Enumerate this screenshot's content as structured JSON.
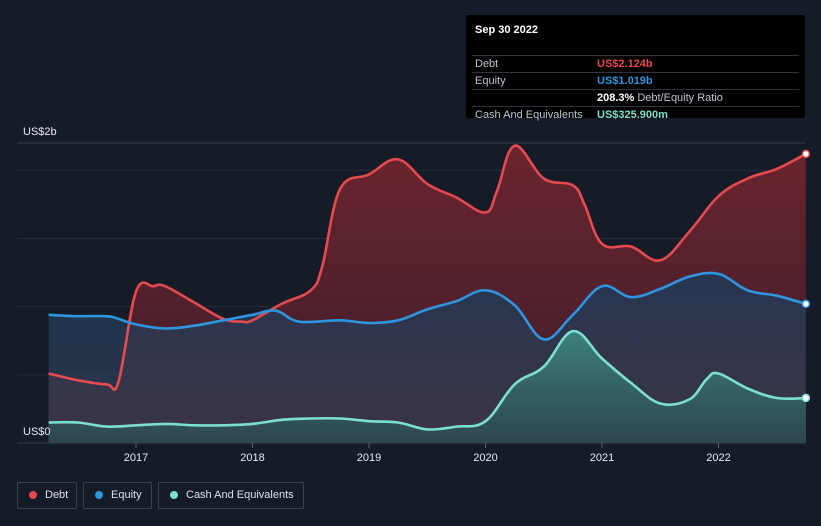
{
  "chart_data": {
    "type": "area",
    "y_axis_labels": {
      "top": "US$2b",
      "bottom": "US$0"
    },
    "ylim": [
      0,
      2.2
    ],
    "xlim": [
      2016.2,
      2022.75
    ],
    "x_ticks": [
      "2017",
      "2018",
      "2019",
      "2020",
      "2021",
      "2022"
    ],
    "x_tick_values": [
      2017,
      2018,
      2019,
      2020,
      2021,
      2022
    ],
    "series": [
      {
        "name": "Debt",
        "color": "#e64a4f",
        "x": [
          2016.25,
          2016.5,
          2016.75,
          2016.85,
          2017.0,
          2017.15,
          2017.25,
          2017.5,
          2017.75,
          2017.9,
          2018.0,
          2018.25,
          2018.5,
          2018.6,
          2018.75,
          2019.0,
          2019.25,
          2019.5,
          2019.75,
          2020.0,
          2020.1,
          2020.25,
          2020.5,
          2020.75,
          2020.85,
          2021.0,
          2021.25,
          2021.5,
          2021.75,
          2022.0,
          2022.25,
          2022.5,
          2022.75
        ],
        "y": [
          0.51,
          0.46,
          0.43,
          0.45,
          1.11,
          1.15,
          1.15,
          1.03,
          0.91,
          0.89,
          0.9,
          1.02,
          1.12,
          1.3,
          1.86,
          1.97,
          2.08,
          1.9,
          1.8,
          1.69,
          1.85,
          2.18,
          1.94,
          1.89,
          1.75,
          1.46,
          1.44,
          1.34,
          1.55,
          1.81,
          1.94,
          2.01,
          2.12
        ]
      },
      {
        "name": "Equity",
        "color": "#2e95e0",
        "x": [
          2016.25,
          2016.5,
          2016.75,
          2016.85,
          2017.0,
          2017.25,
          2017.5,
          2017.75,
          2018.0,
          2018.2,
          2018.4,
          2018.75,
          2019.0,
          2019.25,
          2019.5,
          2019.75,
          2020.0,
          2020.25,
          2020.5,
          2020.75,
          2021.0,
          2021.25,
          2021.5,
          2021.75,
          2022.0,
          2022.25,
          2022.5,
          2022.75
        ],
        "y": [
          0.94,
          0.93,
          0.93,
          0.91,
          0.87,
          0.84,
          0.86,
          0.9,
          0.94,
          0.97,
          0.89,
          0.9,
          0.88,
          0.9,
          0.98,
          1.04,
          1.12,
          1.01,
          0.76,
          0.94,
          1.15,
          1.07,
          1.13,
          1.22,
          1.24,
          1.12,
          1.08,
          1.02
        ]
      },
      {
        "name": "Cash And Equivalents",
        "color": "#7be0cf",
        "x": [
          2016.25,
          2016.5,
          2016.75,
          2017.0,
          2017.25,
          2017.5,
          2017.75,
          2018.0,
          2018.25,
          2018.5,
          2018.75,
          2019.0,
          2019.25,
          2019.5,
          2019.75,
          2020.0,
          2020.25,
          2020.5,
          2020.75,
          2021.0,
          2021.25,
          2021.5,
          2021.75,
          2021.9,
          2022.0,
          2022.25,
          2022.5,
          2022.75
        ],
        "y": [
          0.15,
          0.15,
          0.12,
          0.13,
          0.14,
          0.13,
          0.13,
          0.14,
          0.17,
          0.18,
          0.18,
          0.16,
          0.15,
          0.1,
          0.12,
          0.16,
          0.43,
          0.56,
          0.82,
          0.62,
          0.44,
          0.29,
          0.32,
          0.47,
          0.51,
          0.4,
          0.33,
          0.33
        ]
      }
    ]
  },
  "tooltip": {
    "date": "Sep 30 2022",
    "rows": [
      {
        "label": "Debt",
        "value": "US$2.124b",
        "suffix": "",
        "color": "#e64a4f"
      },
      {
        "label": "Equity",
        "value": "US$1.019b",
        "suffix": "",
        "color": "#2e95e0"
      },
      {
        "label": "",
        "value": "208.3%",
        "suffix": "Debt/Equity Ratio",
        "color": "#ffffff"
      },
      {
        "label": "Cash And Equivalents",
        "value": "US$325.900m",
        "suffix": "",
        "color": "#7be0cf"
      }
    ]
  },
  "legend": [
    {
      "label": "Debt",
      "color": "#e64a4f"
    },
    {
      "label": "Equity",
      "color": "#2e95e0"
    },
    {
      "label": "Cash And Equivalents",
      "color": "#7be0cf"
    }
  ]
}
